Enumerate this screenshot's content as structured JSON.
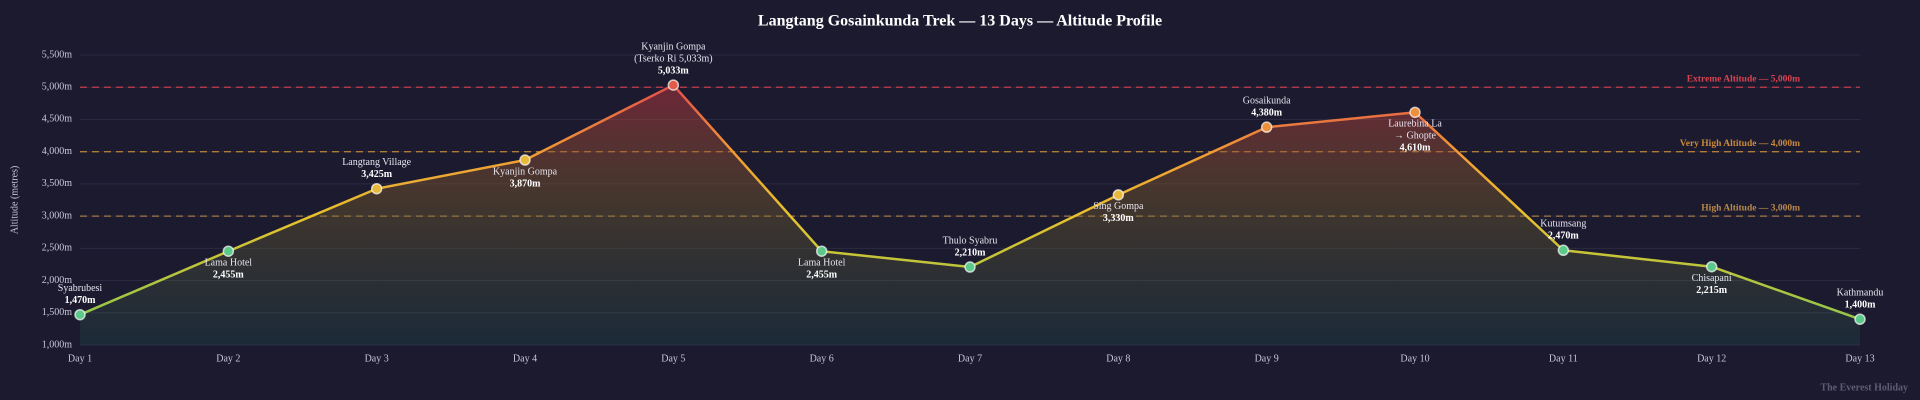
{
  "chart_data": {
    "type": "line",
    "title": "Langtang Gosainkunda Trek — 13 Days — Altitude Profile",
    "y_label": "Altitude (metres)",
    "watermark": "The Everest Holiday",
    "categories": [
      "Day 1",
      "Day 2",
      "Day 3",
      "Day 4",
      "Day 5",
      "Day 6",
      "Day 7",
      "Day 8",
      "Day 9",
      "Day 10",
      "Day 11",
      "Day 12",
      "Day 13"
    ],
    "values": [
      1470,
      2455,
      3425,
      3870,
      5033,
      2455,
      2210,
      3330,
      4380,
      4610,
      2470,
      2215,
      1400
    ],
    "value_labels": [
      "1,470m",
      "2,455m",
      "3,425m",
      "3,870m",
      "5,033m",
      "2,455m",
      "2,210m",
      "3,330m",
      "4,380m",
      "4,610m",
      "2,470m",
      "2,215m",
      "1,400m"
    ],
    "point_labels": [
      [
        "Syabrubesi"
      ],
      [
        "Lama Hotel"
      ],
      [
        "Langtang Village"
      ],
      [
        "Kyanjin Gompa"
      ],
      [
        "Kyanjin Gompa",
        "(Tserko Ri 5,033m)"
      ],
      [
        "Lama Hotel"
      ],
      [
        "Thulo Syabru"
      ],
      [
        "Sing Gompa"
      ],
      [
        "Gosaikunda"
      ],
      [
        "Laurebina La",
        "→ Ghopte"
      ],
      [
        "Kutumsang"
      ],
      [
        "Chisapani"
      ],
      [
        "Kathmandu"
      ]
    ],
    "point_colors": [
      "#5cc98a",
      "#5cc98a",
      "#e8b83a",
      "#e8b83a",
      "#e25a4a",
      "#5cc98a",
      "#5cc98a",
      "#e8b83a",
      "#ee8f3a",
      "#ee8f3a",
      "#5cc98a",
      "#5cc98a",
      "#5cc98a"
    ],
    "ylim": [
      1000,
      5500
    ],
    "yticks": [
      {
        "value": 1000,
        "label": "1,000m"
      },
      {
        "value": 1500,
        "label": "1,500m"
      },
      {
        "value": 2000,
        "label": "2,000m"
      },
      {
        "value": 2500,
        "label": "2,500m"
      },
      {
        "value": 3000,
        "label": "3,000m"
      },
      {
        "value": 3500,
        "label": "3,500m"
      },
      {
        "value": 4000,
        "label": "4,000m"
      },
      {
        "value": 4500,
        "label": "4,500m"
      },
      {
        "value": 5000,
        "label": "5,000m"
      },
      {
        "value": 5500,
        "label": "5,500m"
      }
    ],
    "grid": true,
    "reference_lines": [
      {
        "value": 5000,
        "label": "Extreme Altitude — 5,000m",
        "color": "#d9434f"
      },
      {
        "value": 4000,
        "label": "Very High Altitude — 4,000m",
        "color": "#c98a3a"
      },
      {
        "value": 3000,
        "label": "High Altitude — 3,000m",
        "color": "#b8894a"
      }
    ]
  }
}
